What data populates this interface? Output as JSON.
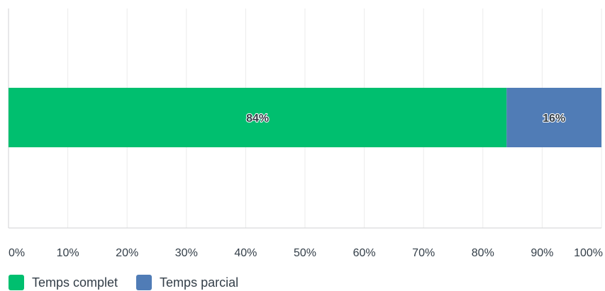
{
  "chart_data": {
    "type": "bar",
    "orientation": "horizontal",
    "stacked": true,
    "categories": [
      ""
    ],
    "series": [
      {
        "name": "Temps complet",
        "values": [
          84
        ],
        "label": "84%",
        "color": "#00bf6f"
      },
      {
        "name": "Temps parcial",
        "values": [
          16
        ],
        "label": "16%",
        "color": "#507cb6"
      }
    ],
    "xlim": [
      0,
      100
    ],
    "x_ticks": [
      "0%",
      "10%",
      "20%",
      "30%",
      "40%",
      "50%",
      "60%",
      "70%",
      "80%",
      "90%",
      "100%"
    ],
    "grid": true,
    "legend_position": "bottom-left"
  }
}
